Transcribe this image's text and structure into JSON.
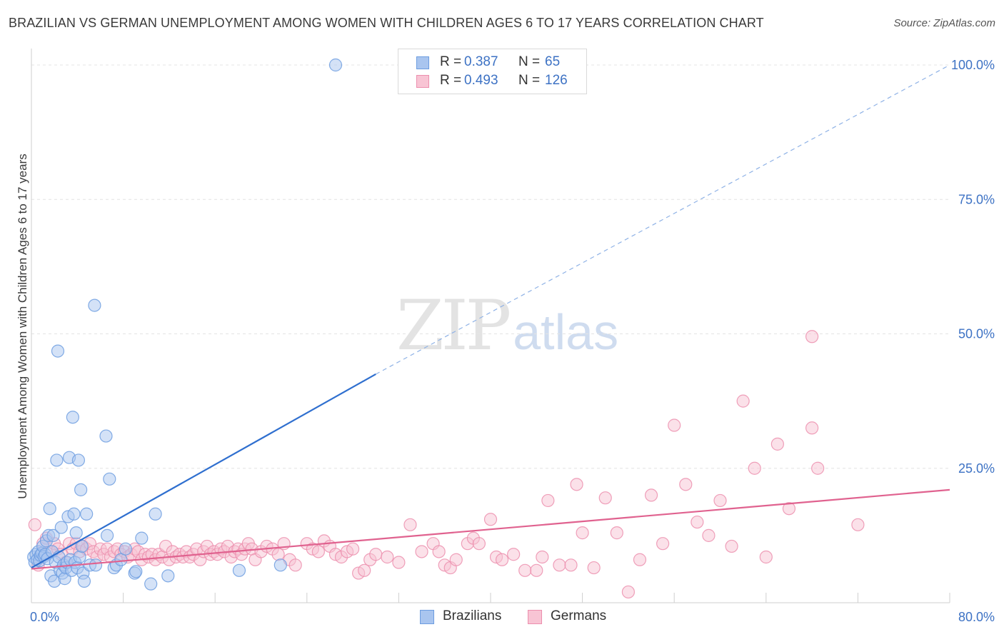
{
  "title": "BRAZILIAN VS GERMAN UNEMPLOYMENT AMONG WOMEN WITH CHILDREN AGES 6 TO 17 YEARS CORRELATION CHART",
  "source": "Source: ZipAtlas.com",
  "watermark": {
    "part1": "ZIP",
    "part2": "atlas"
  },
  "legend": {
    "rows": [
      {
        "r_label": "R =",
        "r_value": "0.387",
        "n_label": "N =",
        "n_value": "65",
        "color": "#a9c5ef",
        "border": "#6d9de0"
      },
      {
        "r_label": "R =",
        "r_value": "0.493",
        "n_label": "N =",
        "n_value": "126",
        "color": "#f8c4d4",
        "border": "#ec8fae"
      }
    ]
  },
  "bottom_legend": [
    {
      "label": "Brazilians",
      "color": "#a9c5ef",
      "border": "#6d9de0"
    },
    {
      "label": "Germans",
      "color": "#f8c4d4",
      "border": "#ec8fae"
    }
  ],
  "chart_data": {
    "type": "scatter",
    "title": "BRAZILIAN VS GERMAN UNEMPLOYMENT AMONG WOMEN WITH CHILDREN AGES 6 TO 17 YEARS CORRELATION CHART",
    "xlabel": "",
    "ylabel": "Unemployment Among Women with Children Ages 6 to 17 years",
    "xlim": [
      0,
      80
    ],
    "ylim": [
      0,
      100
    ],
    "x_tick_labels": [
      "0.0%",
      "80.0%"
    ],
    "y_tick_labels": [
      "25.0%",
      "50.0%",
      "75.0%",
      "100.0%"
    ],
    "y_ticks": [
      25,
      50,
      75,
      100
    ],
    "grid": true,
    "legend_position": "top-center",
    "series": [
      {
        "name": "Brazilians",
        "color": "#6d9de0",
        "fill": "#a9c5ef",
        "trend": {
          "x": [
            0,
            30
          ],
          "y": [
            6.5,
            42.5
          ],
          "extended_to": [
            80,
            100
          ]
        },
        "points": [
          [
            0.2,
            8.5
          ],
          [
            0.3,
            7.5
          ],
          [
            0.4,
            9.0
          ],
          [
            0.5,
            8.0
          ],
          [
            0.6,
            9.5
          ],
          [
            0.7,
            7.8
          ],
          [
            0.8,
            8.8
          ],
          [
            0.9,
            9.2
          ],
          [
            1.0,
            10.5
          ],
          [
            1.1,
            8.6
          ],
          [
            1.2,
            9.0
          ],
          [
            1.3,
            11.5
          ],
          [
            1.4,
            8.2
          ],
          [
            1.5,
            12.5
          ],
          [
            1.6,
            17.5
          ],
          [
            1.7,
            5.0
          ],
          [
            1.8,
            9.5
          ],
          [
            1.9,
            12.5
          ],
          [
            2.0,
            4.0
          ],
          [
            2.1,
            7.5
          ],
          [
            2.2,
            26.5
          ],
          [
            2.3,
            46.8
          ],
          [
            2.4,
            8.5
          ],
          [
            2.5,
            6.0
          ],
          [
            2.6,
            14.0
          ],
          [
            2.7,
            5.5
          ],
          [
            2.8,
            7.0
          ],
          [
            2.9,
            4.5
          ],
          [
            3.0,
            6.5
          ],
          [
            3.1,
            7.5
          ],
          [
            3.2,
            16.0
          ],
          [
            3.3,
            27.0
          ],
          [
            3.4,
            8.0
          ],
          [
            3.5,
            6.0
          ],
          [
            3.6,
            34.5
          ],
          [
            3.7,
            16.5
          ],
          [
            3.8,
            7.5
          ],
          [
            3.9,
            13.0
          ],
          [
            4.0,
            6.5
          ],
          [
            4.1,
            26.5
          ],
          [
            4.2,
            8.5
          ],
          [
            4.3,
            21.0
          ],
          [
            4.4,
            10.5
          ],
          [
            4.5,
            5.5
          ],
          [
            4.6,
            4.0
          ],
          [
            4.8,
            16.5
          ],
          [
            5.1,
            7.0
          ],
          [
            5.5,
            55.3
          ],
          [
            5.6,
            7.0
          ],
          [
            6.5,
            31.0
          ],
          [
            6.6,
            12.5
          ],
          [
            6.8,
            23.0
          ],
          [
            7.2,
            6.5
          ],
          [
            7.4,
            7.0
          ],
          [
            7.8,
            8.0
          ],
          [
            8.2,
            10.0
          ],
          [
            9.0,
            5.5
          ],
          [
            9.1,
            5.8
          ],
          [
            9.6,
            12.0
          ],
          [
            10.4,
            3.5
          ],
          [
            10.8,
            16.5
          ],
          [
            11.9,
            5.0
          ],
          [
            18.1,
            6.0
          ],
          [
            21.7,
            7.0
          ],
          [
            26.5,
            100
          ]
        ]
      },
      {
        "name": "Germans",
        "color": "#ec8fae",
        "fill": "#f8c4d4",
        "trend": {
          "x": [
            0,
            80
          ],
          "y": [
            6.3,
            21.0
          ]
        },
        "points": [
          [
            0.3,
            14.5
          ],
          [
            0.6,
            7.0
          ],
          [
            1.0,
            11.0
          ],
          [
            1.3,
            12.0
          ],
          [
            1.6,
            9.5
          ],
          [
            2.0,
            11.0
          ],
          [
            2.3,
            10.0
          ],
          [
            2.6,
            9.0
          ],
          [
            3.0,
            7.5
          ],
          [
            3.3,
            11.0
          ],
          [
            3.6,
            10.0
          ],
          [
            3.9,
            11.0
          ],
          [
            4.2,
            9.5
          ],
          [
            4.5,
            10.5
          ],
          [
            4.8,
            10.0
          ],
          [
            5.1,
            11.0
          ],
          [
            5.4,
            9.5
          ],
          [
            5.7,
            8.5
          ],
          [
            6.0,
            10.0
          ],
          [
            6.3,
            9.0
          ],
          [
            6.6,
            10.0
          ],
          [
            6.9,
            8.5
          ],
          [
            7.2,
            9.5
          ],
          [
            7.5,
            10.0
          ],
          [
            7.8,
            9.0
          ],
          [
            8.1,
            9.5
          ],
          [
            8.4,
            8.5
          ],
          [
            8.7,
            9.0
          ],
          [
            9.0,
            10.0
          ],
          [
            9.3,
            9.5
          ],
          [
            9.6,
            8.0
          ],
          [
            9.9,
            9.0
          ],
          [
            10.2,
            8.5
          ],
          [
            10.5,
            9.0
          ],
          [
            10.8,
            8.0
          ],
          [
            11.1,
            9.0
          ],
          [
            11.4,
            8.5
          ],
          [
            11.7,
            10.5
          ],
          [
            12.0,
            8.0
          ],
          [
            12.3,
            9.5
          ],
          [
            12.6,
            8.5
          ],
          [
            12.9,
            9.0
          ],
          [
            13.2,
            8.5
          ],
          [
            13.5,
            9.5
          ],
          [
            13.8,
            8.5
          ],
          [
            14.1,
            9.0
          ],
          [
            14.4,
            10.0
          ],
          [
            14.7,
            8.0
          ],
          [
            15.0,
            9.5
          ],
          [
            15.3,
            10.5
          ],
          [
            15.6,
            9.0
          ],
          [
            15.9,
            9.5
          ],
          [
            16.2,
            9.0
          ],
          [
            16.5,
            10.0
          ],
          [
            16.8,
            9.5
          ],
          [
            17.1,
            10.5
          ],
          [
            17.4,
            8.5
          ],
          [
            17.7,
            9.5
          ],
          [
            18.0,
            10.0
          ],
          [
            18.3,
            9.0
          ],
          [
            18.6,
            10.0
          ],
          [
            18.9,
            11.0
          ],
          [
            19.2,
            10.0
          ],
          [
            19.5,
            8.0
          ],
          [
            20.0,
            9.5
          ],
          [
            20.5,
            10.5
          ],
          [
            21.0,
            10.0
          ],
          [
            21.5,
            9.0
          ],
          [
            22.0,
            11.0
          ],
          [
            22.5,
            8.0
          ],
          [
            23.0,
            7.0
          ],
          [
            24.0,
            11.0
          ],
          [
            24.5,
            10.0
          ],
          [
            25.0,
            9.5
          ],
          [
            25.5,
            11.5
          ],
          [
            26.0,
            10.5
          ],
          [
            26.5,
            9.0
          ],
          [
            27.0,
            8.5
          ],
          [
            27.5,
            9.5
          ],
          [
            28.0,
            10.0
          ],
          [
            28.5,
            5.5
          ],
          [
            29.0,
            6.0
          ],
          [
            29.5,
            8.0
          ],
          [
            30.0,
            9.0
          ],
          [
            31.0,
            8.5
          ],
          [
            32.0,
            7.5
          ],
          [
            33.0,
            14.5
          ],
          [
            34.0,
            9.5
          ],
          [
            35.0,
            11.0
          ],
          [
            35.5,
            9.5
          ],
          [
            36.0,
            7.0
          ],
          [
            36.5,
            6.5
          ],
          [
            37.0,
            8.0
          ],
          [
            38.0,
            11.0
          ],
          [
            38.5,
            12.0
          ],
          [
            39.0,
            11.0
          ],
          [
            40.0,
            15.5
          ],
          [
            40.5,
            8.5
          ],
          [
            41.0,
            8.0
          ],
          [
            42.0,
            9.0
          ],
          [
            43.0,
            6.0
          ],
          [
            44.0,
            6.0
          ],
          [
            44.5,
            8.5
          ],
          [
            45.0,
            19.0
          ],
          [
            46.0,
            7.0
          ],
          [
            47.0,
            7.0
          ],
          [
            47.5,
            22.0
          ],
          [
            48.0,
            13.0
          ],
          [
            49.0,
            6.5
          ],
          [
            50.0,
            19.5
          ],
          [
            51.0,
            13.0
          ],
          [
            52.0,
            2.0
          ],
          [
            53.0,
            8.0
          ],
          [
            54.0,
            20.0
          ],
          [
            55.0,
            11.0
          ],
          [
            56.0,
            33.0
          ],
          [
            57.0,
            22.0
          ],
          [
            58.0,
            15.0
          ],
          [
            59.0,
            12.5
          ],
          [
            60.0,
            19.0
          ],
          [
            61.0,
            10.5
          ],
          [
            62.0,
            37.5
          ],
          [
            63.0,
            25.0
          ],
          [
            64.0,
            8.5
          ],
          [
            65.0,
            29.5
          ],
          [
            66.0,
            17.5
          ],
          [
            68.0,
            32.5
          ],
          [
            68.5,
            25.0
          ],
          [
            72.0,
            14.5
          ],
          [
            68.0,
            49.5
          ]
        ]
      }
    ]
  }
}
